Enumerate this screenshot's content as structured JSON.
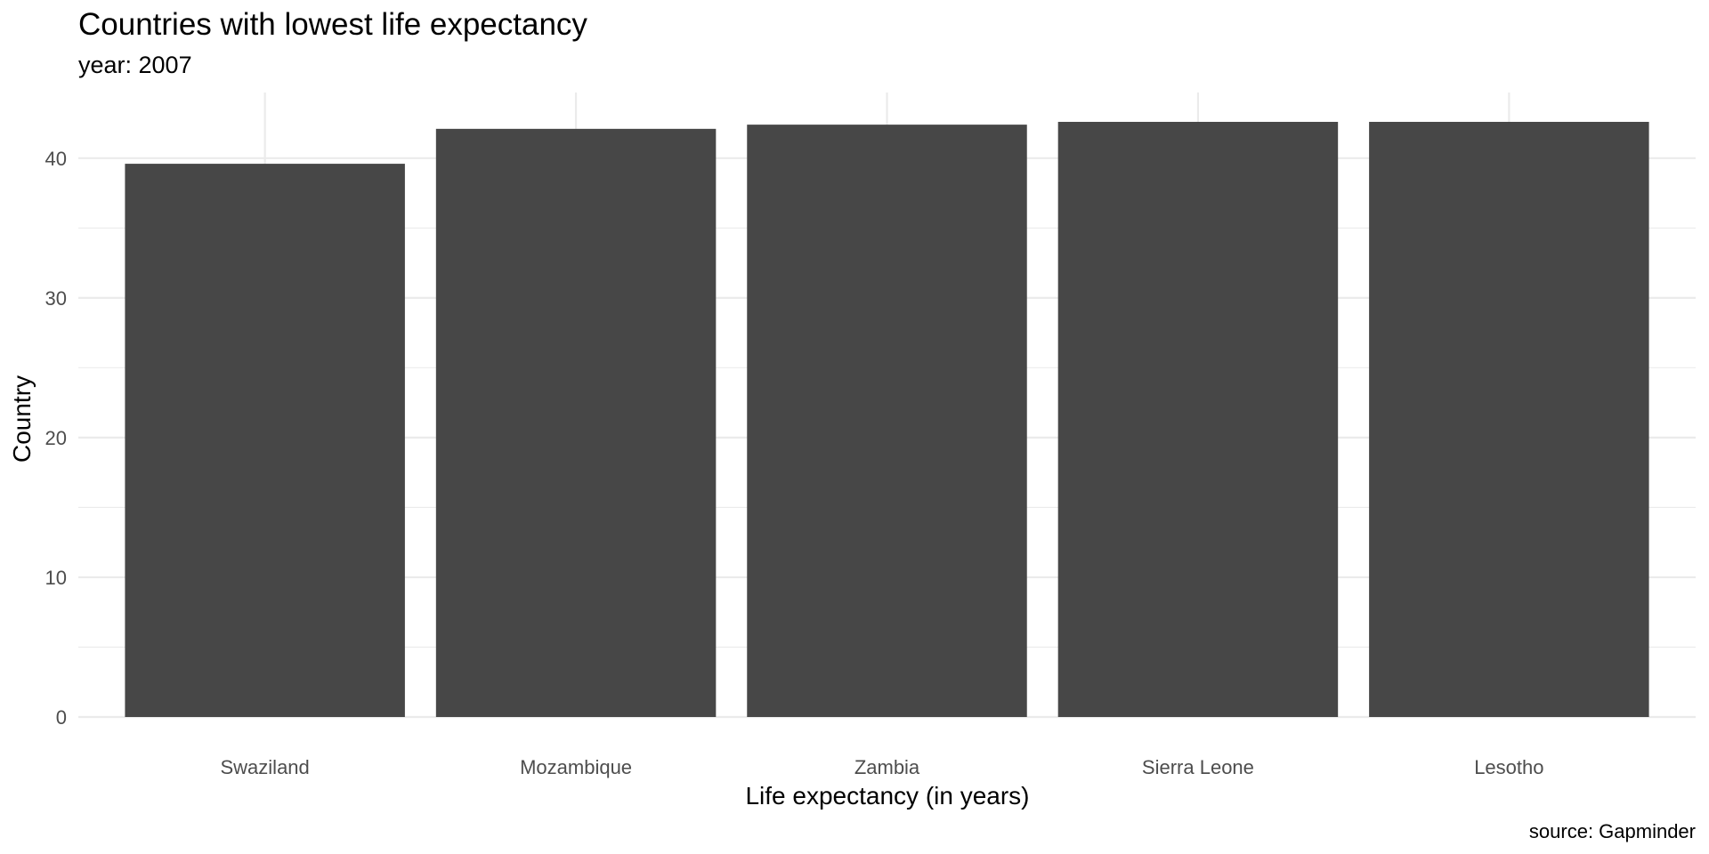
{
  "chart_data": {
    "type": "bar",
    "title": "Countries with lowest life expectancy",
    "subtitle": "year: 2007",
    "xlabel": "Life expectancy (in years)",
    "ylabel": "Country",
    "caption": "source: Gapminder",
    "categories": [
      "Swaziland",
      "Mozambique",
      "Zambia",
      "Sierra Leone",
      "Lesotho"
    ],
    "values": [
      39.6,
      42.1,
      42.4,
      42.6,
      42.6
    ],
    "ylim": [
      0,
      44.7
    ],
    "yticks": [
      0,
      10,
      20,
      30,
      40
    ],
    "grid": true,
    "colors": {
      "bar": "#474747",
      "grid": "#ebebeb",
      "tick_text": "#4d4d4d",
      "text": "#000000",
      "background": "#ffffff"
    }
  }
}
